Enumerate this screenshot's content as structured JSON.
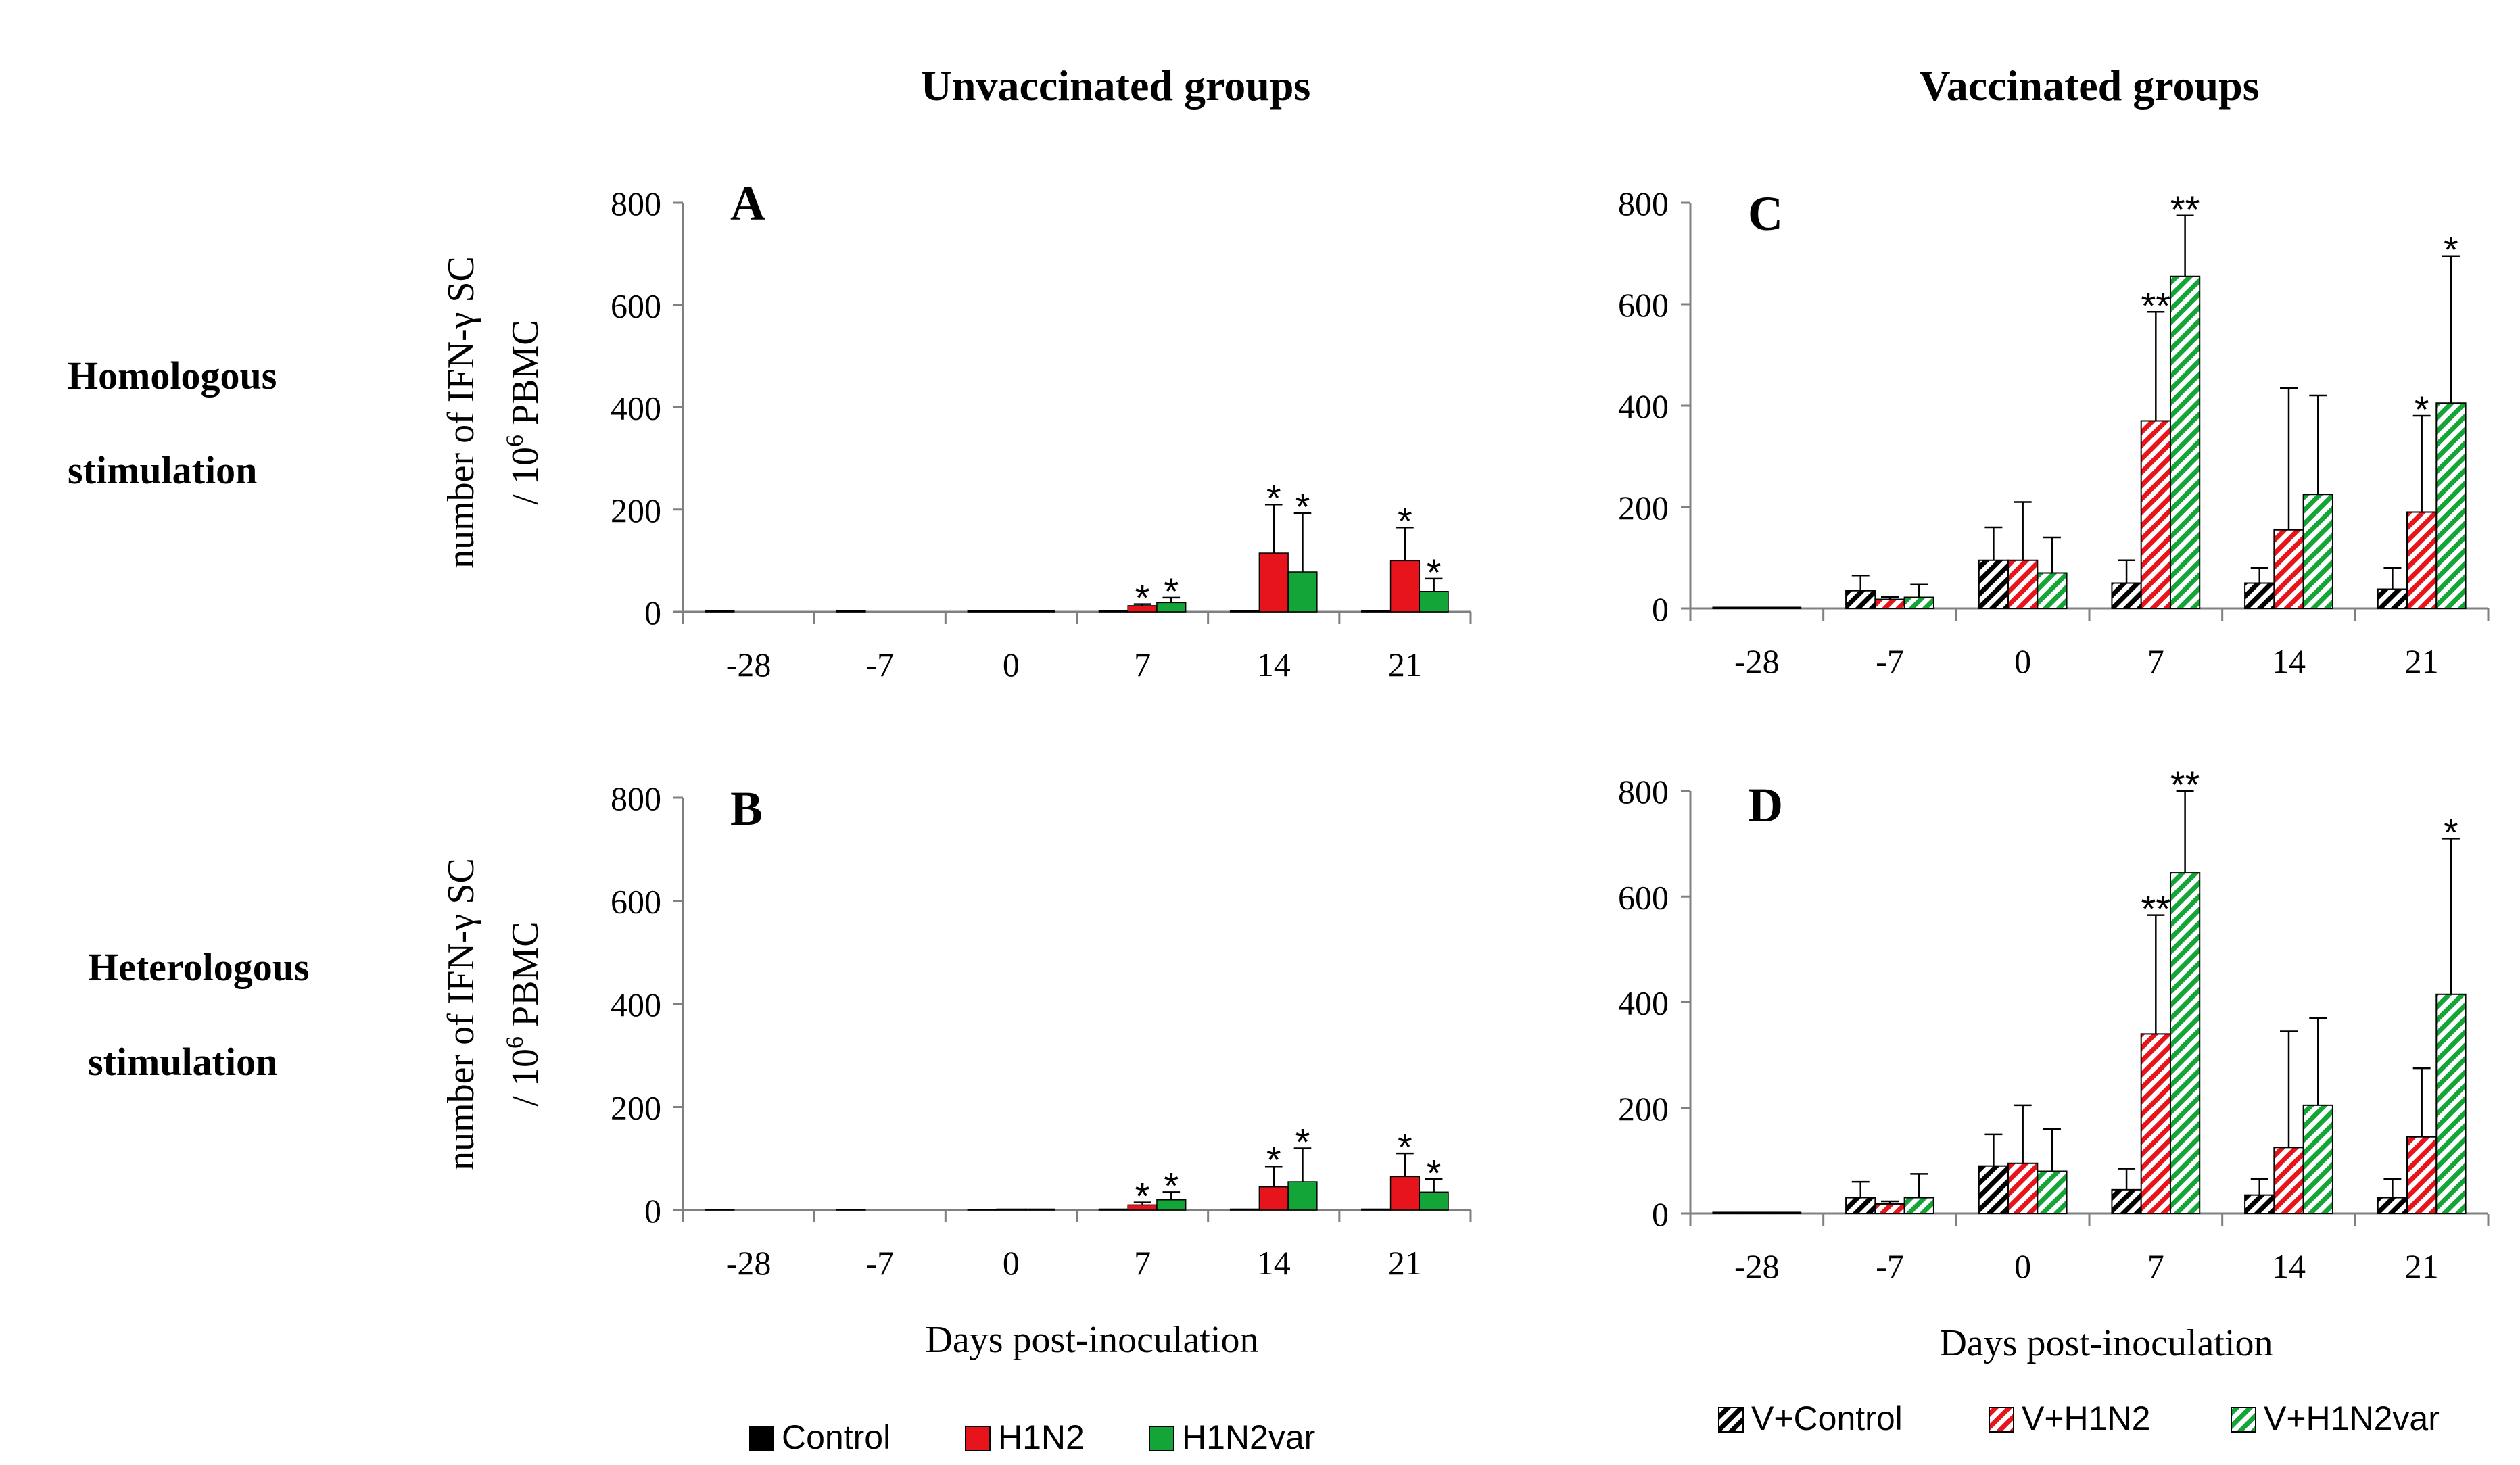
{
  "colors": {
    "control": "#000000",
    "h1n2": "#e8141b",
    "h1n2var": "#13a538",
    "axis": "#808080",
    "text": "#000000"
  },
  "headers": {
    "unvaccinated": "Unvaccinated groups",
    "vaccinated": "Vaccinated groups"
  },
  "row_labels": {
    "homologous_line1": "Homologous",
    "homologous_line2": "stimulation",
    "heterologous_line1": "Heterologous",
    "heterologous_line2": "stimulation"
  },
  "y_axis_label": {
    "line1": "number of IFN-γ SC",
    "line2_prefix": "/ 10",
    "line2_sup": "6",
    "line2_suffix": " PBMC"
  },
  "x_axis_label": "Days post-inoculation",
  "legend_unvaccinated": [
    "Control",
    "H1N2",
    "H1N2var"
  ],
  "legend_vaccinated": [
    "V+Control",
    "V+H1N2",
    "V+H1N2var"
  ],
  "chart_data": [
    {
      "panel": "A",
      "type": "bar",
      "group": "Unvaccinated",
      "stimulation": "Homologous",
      "categories": [
        "-28",
        "-7",
        "0",
        "7",
        "14",
        "21"
      ],
      "ylim": [
        0,
        800
      ],
      "yticks": [
        "0",
        "200",
        "400",
        "600",
        "800"
      ],
      "series": [
        {
          "name": "Control",
          "values": [
            2,
            2,
            2,
            2,
            2,
            2
          ],
          "errors": [
            0,
            0,
            0,
            0,
            0,
            0
          ],
          "sig": [
            "",
            "",
            "",
            "",
            "",
            ""
          ]
        },
        {
          "name": "H1N2",
          "values": [
            0,
            0,
            2,
            12,
            115,
            100
          ],
          "errors": [
            0,
            0,
            0,
            3,
            95,
            65
          ],
          "sig": [
            "",
            "",
            "",
            "*",
            "*",
            "*"
          ]
        },
        {
          "name": "H1N2var",
          "values": [
            0,
            0,
            2,
            18,
            78,
            40
          ],
          "errors": [
            0,
            0,
            0,
            10,
            115,
            25
          ],
          "sig": [
            "",
            "",
            "",
            "*",
            "*",
            "*"
          ]
        }
      ]
    },
    {
      "panel": "B",
      "type": "bar",
      "group": "Unvaccinated",
      "stimulation": "Heterologous",
      "categories": [
        "-28",
        "-7",
        "0",
        "7",
        "14",
        "21"
      ],
      "ylim": [
        0,
        800
      ],
      "yticks": [
        "0",
        "200",
        "400",
        "600",
        "800"
      ],
      "series": [
        {
          "name": "Control",
          "values": [
            1,
            1,
            1,
            2,
            2,
            2
          ],
          "errors": [
            0,
            0,
            0,
            0,
            0,
            0
          ],
          "sig": [
            "",
            "",
            "",
            "",
            "",
            ""
          ]
        },
        {
          "name": "H1N2",
          "values": [
            0,
            0,
            2,
            10,
            45,
            65
          ],
          "errors": [
            0,
            0,
            0,
            5,
            40,
            45
          ],
          "sig": [
            "",
            "",
            "",
            "*",
            "*",
            "*"
          ]
        },
        {
          "name": "H1N2var",
          "values": [
            0,
            0,
            2,
            20,
            55,
            35
          ],
          "errors": [
            0,
            0,
            0,
            15,
            65,
            25
          ],
          "sig": [
            "",
            "",
            "",
            "*",
            "*",
            "*"
          ]
        }
      ]
    },
    {
      "panel": "C",
      "type": "bar",
      "group": "Vaccinated",
      "stimulation": "Homologous",
      "categories": [
        "-28",
        "-7",
        "0",
        "7",
        "14",
        "21"
      ],
      "ylim": [
        0,
        800
      ],
      "yticks": [
        "0",
        "200",
        "400",
        "600",
        "800"
      ],
      "series": [
        {
          "name": "V+Control",
          "values": [
            2,
            35,
            95,
            50,
            50,
            38
          ],
          "errors": [
            0,
            30,
            65,
            45,
            30,
            42
          ],
          "sig": [
            "",
            "",
            "",
            "",
            "",
            ""
          ]
        },
        {
          "name": "V+H1N2",
          "values": [
            2,
            18,
            95,
            370,
            155,
            190
          ],
          "errors": [
            0,
            5,
            115,
            215,
            280,
            190
          ],
          "sig": [
            "",
            "",
            "",
            "**",
            "",
            "*"
          ]
        },
        {
          "name": "V+H1N2var",
          "values": [
            2,
            22,
            70,
            655,
            225,
            405
          ],
          "errors": [
            0,
            25,
            70,
            120,
            195,
            290
          ],
          "sig": [
            "",
            "",
            "",
            "**",
            "",
            "*"
          ]
        }
      ]
    },
    {
      "panel": "D",
      "type": "bar",
      "group": "Vaccinated",
      "stimulation": "Heterologous",
      "categories": [
        "-28",
        "-7",
        "0",
        "7",
        "14",
        "21"
      ],
      "ylim": [
        0,
        800
      ],
      "yticks": [
        "0",
        "200",
        "400",
        "600",
        "800"
      ],
      "series": [
        {
          "name": "V+Control",
          "values": [
            2,
            30,
            90,
            45,
            35,
            30
          ],
          "errors": [
            0,
            30,
            60,
            40,
            30,
            35
          ],
          "sig": [
            "",
            "",
            "",
            "",
            "",
            ""
          ]
        },
        {
          "name": "V+H1N2",
          "values": [
            2,
            18,
            95,
            340,
            125,
            145
          ],
          "errors": [
            0,
            5,
            110,
            225,
            220,
            130
          ],
          "sig": [
            "",
            "",
            "",
            "**",
            "",
            ""
          ]
        },
        {
          "name": "V+H1N2var",
          "values": [
            2,
            30,
            80,
            645,
            205,
            415
          ],
          "errors": [
            0,
            45,
            80,
            155,
            165,
            295
          ],
          "sig": [
            "",
            "",
            "",
            "**",
            "",
            "*"
          ]
        }
      ]
    }
  ]
}
